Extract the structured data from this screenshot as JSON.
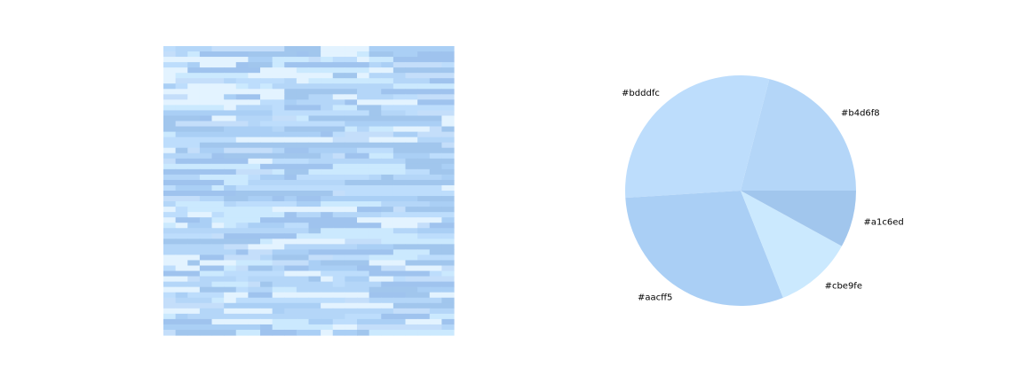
{
  "chart_data": [
    {
      "type": "heatmap",
      "palette": [
        "#bdddfc",
        "#b4d6f8",
        "#a1c6ed",
        "#cbe9fe",
        "#aacff5",
        "#e3f3ff",
        "#c4defa",
        "#9fc3ee"
      ]
    },
    {
      "type": "pie",
      "slices": [
        {
          "label": "#b4d6f8",
          "color": "#b4d6f8",
          "value": 21
        },
        {
          "label": "#bdddfc",
          "color": "#bdddfc",
          "value": 30
        },
        {
          "label": "#aacff5",
          "color": "#aacff5",
          "value": 30
        },
        {
          "label": "#cbe9fe",
          "color": "#cbe9fe",
          "value": 11
        },
        {
          "label": "#a1c6ed",
          "color": "#a1c6ed",
          "value": 8
        }
      ]
    }
  ]
}
